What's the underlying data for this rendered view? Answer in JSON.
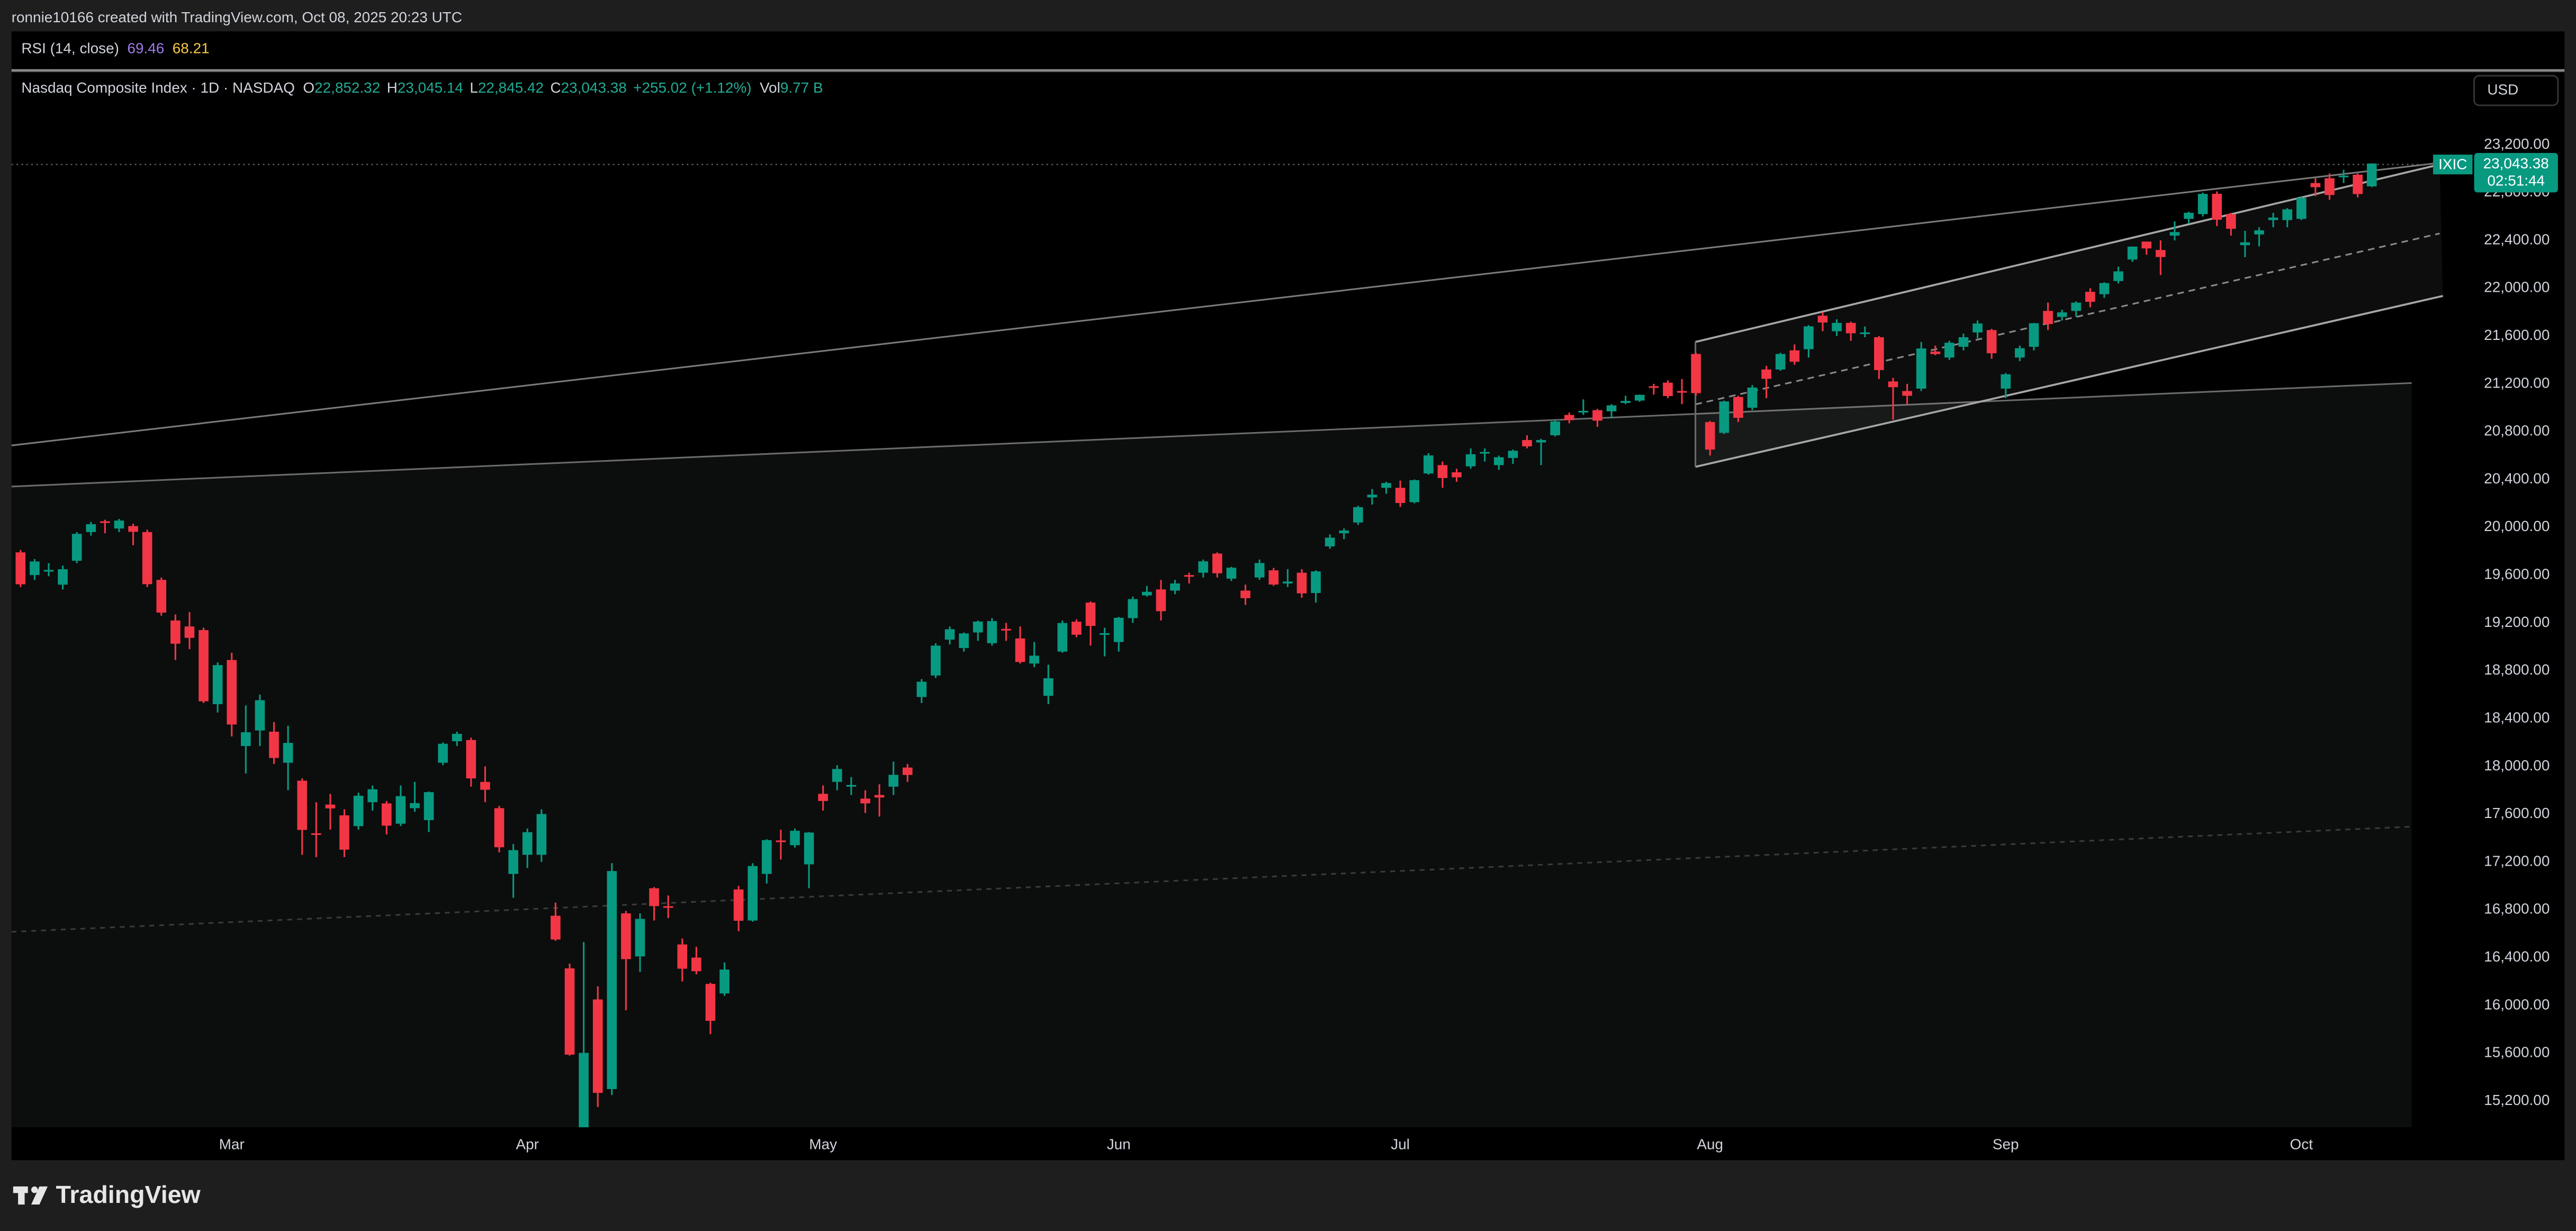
{
  "header": {
    "credit": "ronnie10166 created with TradingView.com, Oct 08, 2025 20:23 UTC",
    "rsi": {
      "label": "RSI (14, close)",
      "values": [
        "69.46",
        "68.21"
      ]
    },
    "legend": {
      "title": "Nasdaq Composite Index · 1D · NASDAQ",
      "fields": [
        {
          "key": "O",
          "value": "22,852.32"
        },
        {
          "key": "H",
          "value": "23,045.14"
        },
        {
          "key": "L",
          "value": "22,845.42"
        },
        {
          "key": "C",
          "value": "23,043.38"
        }
      ],
      "change": "+255.02 (+1.12%)",
      "volume": {
        "key": "Vol",
        "value": "9.77 B"
      }
    },
    "currency": "USD",
    "price_tag": {
      "symbol": "IXIC",
      "price": "23,043.38",
      "countdown": "02:51:44"
    },
    "brand": "TradingView"
  },
  "chart_data": {
    "type": "candlestick",
    "up_color": "#089981",
    "down_color": "#f23645",
    "grid": false,
    "categories": [
      null,
      null,
      null,
      null,
      null,
      null,
      null,
      null,
      null,
      null,
      null,
      null,
      null,
      null,
      null,
      "Mar",
      null,
      null,
      null,
      null,
      null,
      null,
      null,
      null,
      null,
      null,
      null,
      null,
      null,
      null,
      null,
      null,
      null,
      null,
      null,
      null,
      "Apr",
      null,
      null,
      null,
      null,
      null,
      null,
      null,
      null,
      null,
      null,
      null,
      null,
      null,
      null,
      null,
      null,
      null,
      null,
      null,
      null,
      "May",
      null,
      null,
      null,
      null,
      null,
      null,
      null,
      null,
      null,
      null,
      null,
      null,
      null,
      null,
      null,
      null,
      null,
      null,
      null,
      null,
      "Jun",
      null,
      null,
      null,
      null,
      null,
      null,
      null,
      null,
      null,
      null,
      null,
      null,
      null,
      null,
      null,
      null,
      null,
      null,
      null,
      "Jul",
      null,
      null,
      null,
      null,
      null,
      null,
      null,
      null,
      null,
      null,
      null,
      null,
      null,
      null,
      null,
      null,
      null,
      null,
      null,
      null,
      null,
      "Aug",
      null,
      null,
      null,
      null,
      null,
      null,
      null,
      null,
      null,
      null,
      null,
      null,
      null,
      null,
      null,
      null,
      null,
      null,
      null,
      null,
      "Sep",
      null,
      null,
      null,
      null,
      null,
      null,
      null,
      null,
      null,
      null,
      null,
      null,
      null,
      null,
      null,
      null,
      null,
      null,
      null,
      null,
      "Oct",
      null,
      null,
      null,
      null,
      null
    ],
    "open": [
      19790,
      19600,
      19640,
      19520,
      19720,
      19960,
      20050,
      19990,
      20010,
      19960,
      19560,
      19220,
      19170,
      19140,
      18520,
      18890,
      18170,
      18300,
      18290,
      18030,
      17880,
      17440,
      17680,
      17590,
      17500,
      17700,
      17690,
      17520,
      17650,
      17550,
      18030,
      18210,
      18220,
      17870,
      17650,
      17100,
      17260,
      17260,
      16750,
      16310,
      14900,
      16050,
      15300,
      16770,
      16410,
      16980,
      16830,
      16510,
      16400,
      16180,
      16100,
      16970,
      16710,
      17100,
      17380,
      17340,
      17180,
      17770,
      17870,
      17830,
      17730,
      17760,
      17830,
      17990,
      18580,
      18760,
      19060,
      18990,
      19120,
      19030,
      19150,
      19070,
      18860,
      18590,
      18960,
      19210,
      19370,
      19110,
      19040,
      19240,
      19430,
      19480,
      19470,
      19600,
      19620,
      19780,
      19570,
      19470,
      19580,
      19640,
      19530,
      19620,
      19450,
      19840,
      19950,
      20040,
      20250,
      20330,
      20330,
      20210,
      20450,
      20520,
      20460,
      20510,
      20620,
      20520,
      20580,
      20730,
      20710,
      20770,
      20940,
      20960,
      20980,
      20970,
      21040,
      21060,
      21180,
      21210,
      21140,
      21450,
      20880,
      20790,
      21090,
      21000,
      21320,
      21320,
      21480,
      21490,
      21770,
      21640,
      21710,
      21620,
      21590,
      21220,
      21140,
      21160,
      21470,
      21420,
      21510,
      21630,
      21650,
      21160,
      21420,
      21510,
      21810,
      21760,
      21810,
      21970,
      21950,
      22060,
      22240,
      22390,
      22320,
      22440,
      22580,
      22620,
      22790,
      22620,
      22360,
      22450,
      22570,
      22570,
      22580,
      22880,
      22920,
      22940,
      22950,
      22852.32
    ],
    "high": [
      19810,
      19735,
      19700,
      19680,
      19960,
      20045,
      20063,
      20070,
      20030,
      19980,
      19580,
      19270,
      19290,
      19160,
      18870,
      18950,
      18510,
      18600,
      18370,
      18340,
      17900,
      17700,
      17770,
      17640,
      17780,
      17840,
      17710,
      17840,
      17870,
      17790,
      18200,
      18290,
      18240,
      18000,
      17670,
      17350,
      17480,
      17640,
      16860,
      16350,
      16530,
      16160,
      17190,
      16790,
      16770,
      16990,
      16920,
      16560,
      16490,
      16190,
      16360,
      17000,
      17190,
      17390,
      17470,
      17480,
      17450,
      17840,
      18010,
      17910,
      17800,
      17850,
      18040,
      18020,
      18730,
      19030,
      19170,
      19120,
      19220,
      19240,
      19200,
      19170,
      19040,
      18850,
      19220,
      19230,
      19380,
      19160,
      19250,
      19420,
      19510,
      19560,
      19560,
      19620,
      19730,
      19790,
      19670,
      19520,
      19730,
      19660,
      19650,
      19650,
      19640,
      19940,
      19990,
      20180,
      20320,
      20380,
      20390,
      20400,
      20620,
      20550,
      20490,
      20660,
      20660,
      20600,
      20650,
      20770,
      20740,
      20900,
      20960,
      21070,
      20990,
      21030,
      21100,
      21110,
      21200,
      21230,
      21240,
      21460,
      20890,
      21060,
      21100,
      21190,
      21350,
      21460,
      21530,
      21690,
      21800,
      21740,
      21720,
      21680,
      21600,
      21250,
      21200,
      21550,
      21520,
      21560,
      21620,
      21730,
      21660,
      21290,
      21520,
      21710,
      21880,
      21820,
      21890,
      22000,
      22050,
      22180,
      22350,
      22390,
      22400,
      22560,
      22640,
      22800,
      22810,
      22630,
      22480,
      22510,
      22630,
      22670,
      22770,
      22920,
      22960,
      22990,
      22960,
      23045.14
    ],
    "low": [
      19500,
      19560,
      19590,
      19480,
      19700,
      19930,
      19950,
      19960,
      19850,
      19500,
      19260,
      18890,
      18980,
      18530,
      18450,
      18250,
      17940,
      18170,
      18020,
      17800,
      17260,
      17240,
      17470,
      17240,
      17470,
      17630,
      17430,
      17500,
      17620,
      17450,
      18010,
      18170,
      17830,
      17700,
      17280,
      16900,
      17150,
      17200,
      16540,
      15580,
      14784,
      15150,
      15250,
      15960,
      16280,
      16710,
      16730,
      16200,
      16260,
      15760,
      16080,
      16620,
      16700,
      17020,
      17220,
      17320,
      16980,
      17630,
      17800,
      17760,
      17610,
      17580,
      17760,
      17870,
      18530,
      18740,
      19020,
      18960,
      19050,
      19010,
      19050,
      18860,
      18830,
      18520,
      18950,
      19080,
      19010,
      18920,
      18960,
      19200,
      19420,
      19220,
      19440,
      19530,
      19580,
      19580,
      19550,
      19350,
      19560,
      19510,
      19500,
      19410,
      19370,
      19820,
      19900,
      20020,
      20190,
      20280,
      20170,
      20200,
      20440,
      20330,
      20380,
      20490,
      20550,
      20480,
      20530,
      20660,
      20520,
      20760,
      20870,
      20940,
      20840,
      20910,
      21030,
      21050,
      21110,
      21080,
      21030,
      21100,
      20600,
      20780,
      20880,
      20980,
      21080,
      21310,
      21360,
      21420,
      21640,
      21600,
      21560,
      21590,
      21240,
      20900,
      21030,
      21140,
      21440,
      21400,
      21480,
      21580,
      21410,
      21080,
      21390,
      21480,
      21650,
      21730,
      21760,
      21840,
      21920,
      22040,
      22220,
      22280,
      22110,
      22400,
      22540,
      22600,
      22520,
      22440,
      22260,
      22350,
      22510,
      22510,
      22570,
      22770,
      22740,
      22880,
      22760,
      22845.42
    ],
    "close": [
      19523,
      19714,
      19643,
      19649,
      19945,
      20026,
      20041,
      20056,
      19962,
      19524,
      19286,
      19026,
      19075,
      18544,
      18847,
      18350,
      18285,
      18553,
      18070,
      18196,
      17468,
      17436,
      17648,
      17303,
      17754,
      17808,
      17504,
      17751,
      17692,
      17784,
      18189,
      18272,
      17899,
      17804,
      17323,
      17299,
      17449,
      17601,
      16551,
      15588,
      15603,
      15268,
      17124,
      16387,
      16724,
      16831,
      16823,
      16307,
      16286,
      15871,
      16300,
      16708,
      17166,
      17383,
      17366,
      17461,
      17446,
      17710,
      17978,
      17844,
      17690,
      17739,
      17929,
      17928,
      18708,
      19010,
      19147,
      19112,
      19211,
      19215,
      19143,
      18873,
      18926,
      18737,
      19199,
      19101,
      19175,
      19114,
      19243,
      19399,
      19460,
      19298,
      19530,
      19591,
      19715,
      19615,
      19662,
      19407,
      19701,
      19521,
      19546,
      19447,
      19631,
      19913,
      19973,
      20168,
      20273,
      20370,
      20203,
      20394,
      20601,
      20412,
      20418,
      20611,
      20630,
      20586,
      20640,
      20677,
      20730,
      20885,
      20896,
      20974,
      20892,
      21020,
      21057,
      21108,
      21178,
      21098,
      21130,
      21122,
      20650,
      21053,
      20916,
      21169,
      21242,
      21450,
      21385,
      21681,
      21713,
      21710,
      21623,
      21630,
      21315,
      21172,
      21100,
      21496,
      21449,
      21544,
      21590,
      21705,
      21456,
      21280,
      21498,
      21707,
      21700,
      21798,
      21879,
      21886,
      22043,
      22141,
      22348,
      22333,
      22261,
      22470,
      22631,
      22789,
      22573,
      22497,
      22384,
      22484,
      22591,
      22660,
      22755,
      22845,
      22780,
      22942,
      22788,
      23043.38
    ],
    "ylim": [
      14980,
      23805
    ],
    "yticks": [
      {
        "value": 15200,
        "label": "15,200.00"
      },
      {
        "value": 15600,
        "label": "15,600.00"
      },
      {
        "value": 16000,
        "label": "16,000.00"
      },
      {
        "value": 16400,
        "label": "16,400.00"
      },
      {
        "value": 16800,
        "label": "16,800.00"
      },
      {
        "value": 17200,
        "label": "17,200.00"
      },
      {
        "value": 17600,
        "label": "17,600.00"
      },
      {
        "value": 18000,
        "label": "18,000.00"
      },
      {
        "value": 18400,
        "label": "18,400.00"
      },
      {
        "value": 18800,
        "label": "18,800.00"
      },
      {
        "value": 19200,
        "label": "19,200.00"
      },
      {
        "value": 19600,
        "label": "19,600.00"
      },
      {
        "value": 20000,
        "label": "20,000.00"
      },
      {
        "value": 20400,
        "label": "20,400.00"
      },
      {
        "value": 20800,
        "label": "20,800.00"
      },
      {
        "value": 21200,
        "label": "21,200.00"
      },
      {
        "value": 21600,
        "label": "21,600.00"
      },
      {
        "value": 22000,
        "label": "22,000.00"
      },
      {
        "value": 22400,
        "label": "22,400.00"
      },
      {
        "value": 22800,
        "label": "22,800.00"
      },
      {
        "value": 23200,
        "label": "23,200.00"
      }
    ]
  }
}
